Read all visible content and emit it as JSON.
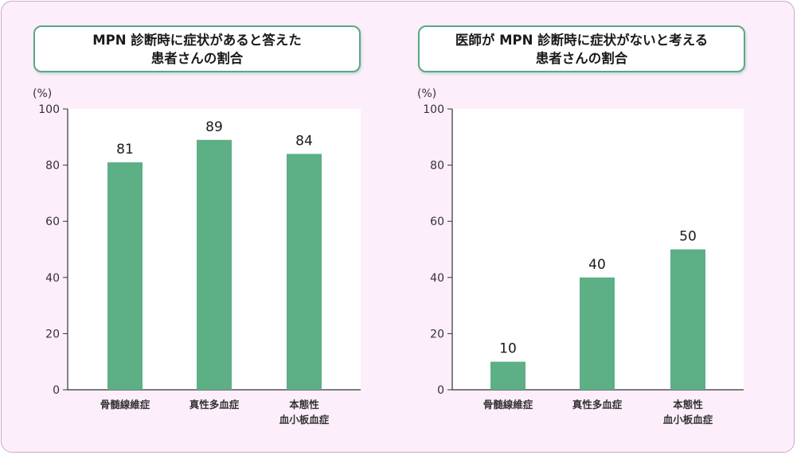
{
  "colors": {
    "bar": "#5daf86",
    "panel_border": "#5aa887",
    "frame_background": "#fdeefc",
    "plot_background": "#ffffff"
  },
  "chart_data": [
    {
      "type": "bar",
      "title": "MPN 診断時に症状があると答えた\n患者さんの割合",
      "unit": "(%)",
      "categories": [
        [
          "骨髄線維症"
        ],
        [
          "真性多血症"
        ],
        [
          "本態性",
          "血小板血症"
        ]
      ],
      "values": [
        81,
        89,
        84
      ],
      "ylim": [
        0,
        100
      ],
      "yticks": [
        0,
        20,
        40,
        60,
        80,
        100
      ],
      "grid": false
    },
    {
      "type": "bar",
      "title": "医師が MPN 診断時に症状がないと考える\n患者さんの割合",
      "unit": "(%)",
      "categories": [
        [
          "骨髄線維症"
        ],
        [
          "真性多血症"
        ],
        [
          "本態性",
          "血小板血症"
        ]
      ],
      "values": [
        10,
        40,
        50
      ],
      "ylim": [
        0,
        100
      ],
      "yticks": [
        0,
        20,
        40,
        60,
        80,
        100
      ],
      "grid": false
    }
  ]
}
